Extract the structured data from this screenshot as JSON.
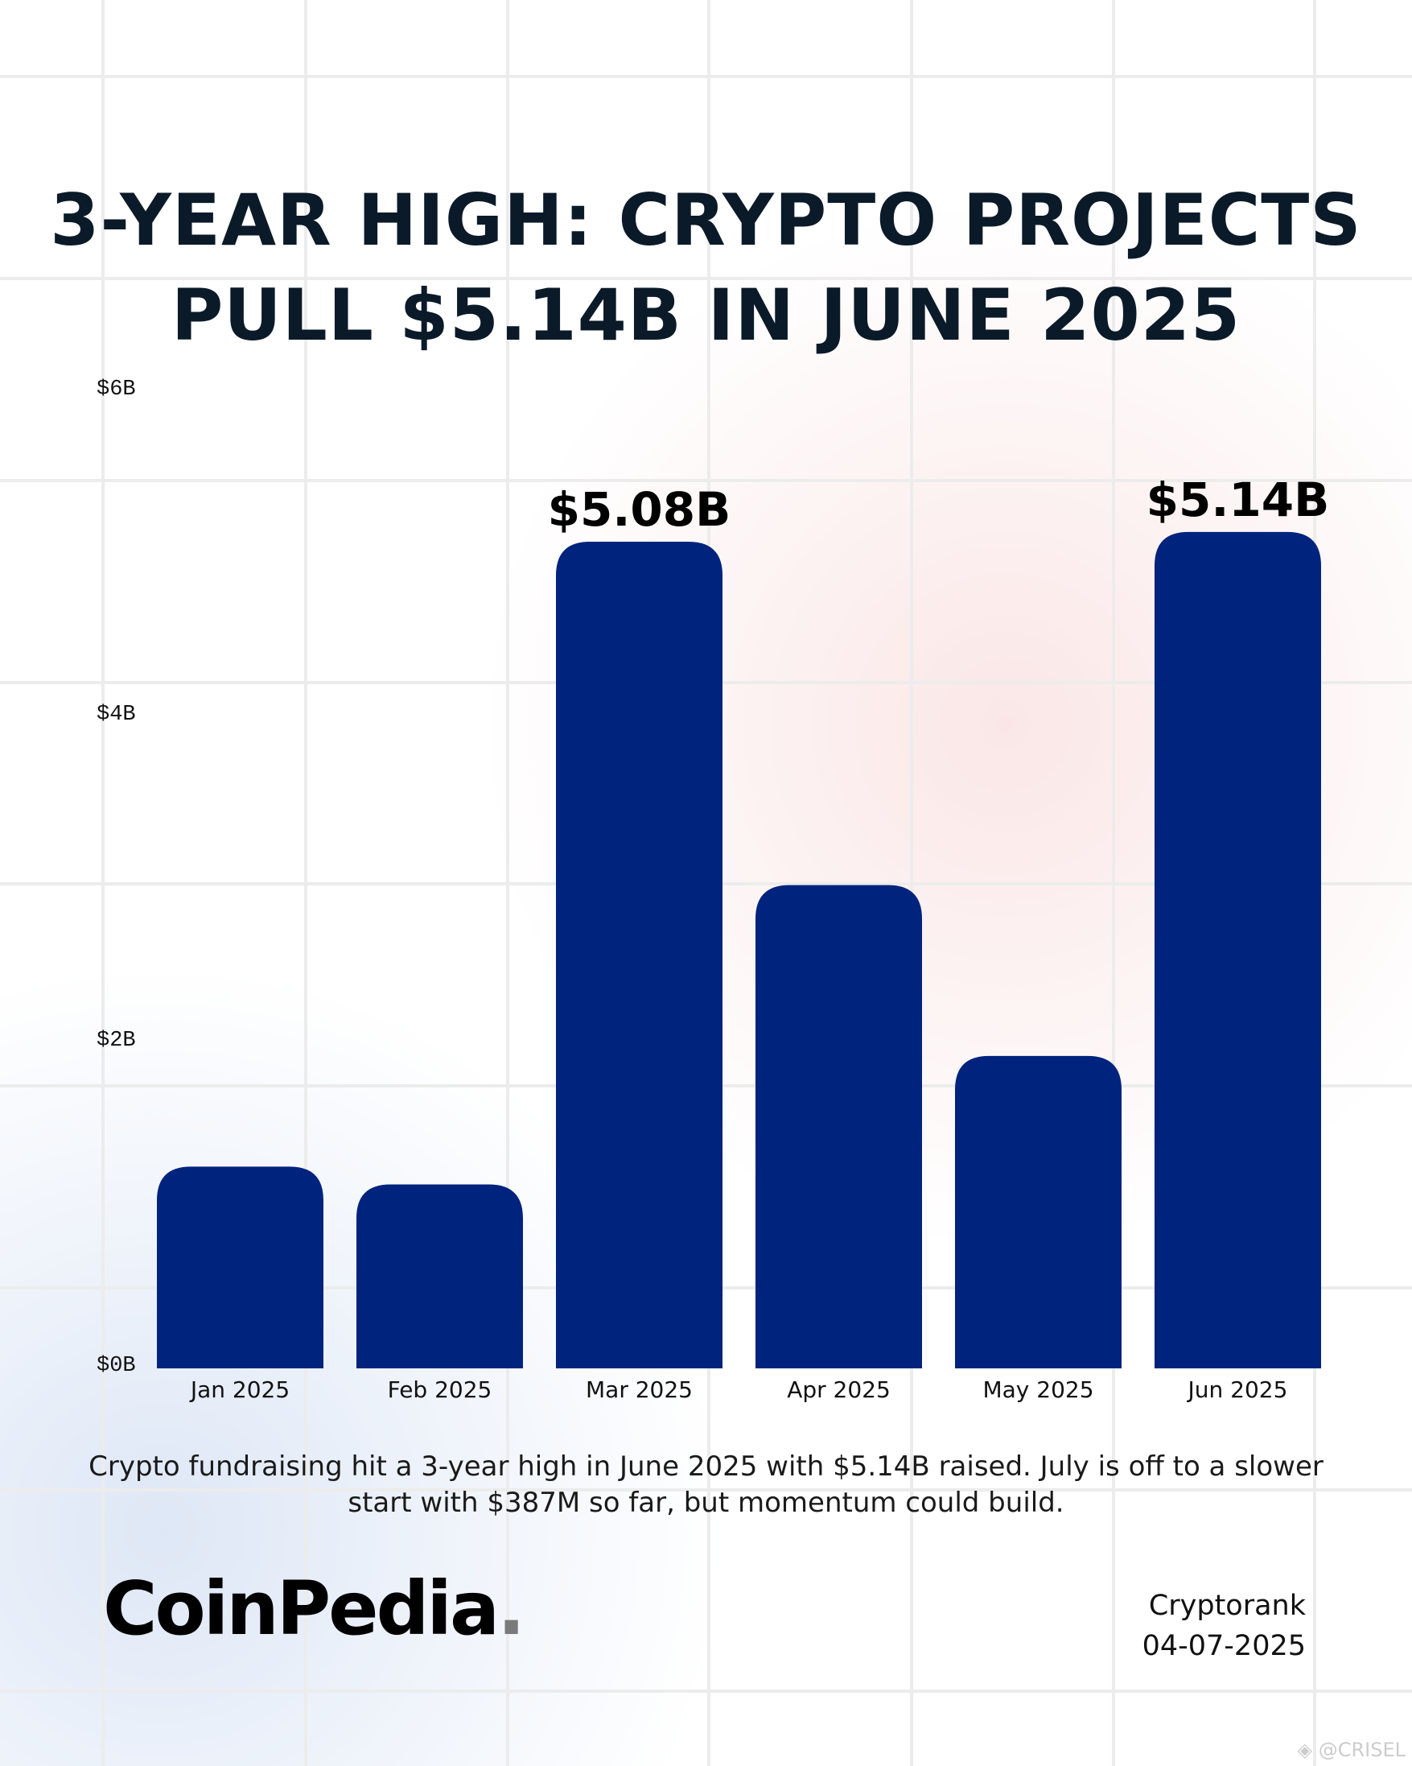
{
  "title_lines": [
    "3-YEAR HIGH: CRYPTO PROJECTS",
    "PULL $5.14B IN JUNE 2025"
  ],
  "chart_data": {
    "type": "bar",
    "title": "3-YEAR HIGH: CRYPTO PROJECTS PULL $5.14B IN JUNE 2025",
    "categories": [
      "Jan 2025",
      "Feb 2025",
      "Mar 2025",
      "Apr 2025",
      "May 2025",
      "Jun 2025"
    ],
    "values": [
      1.24,
      1.13,
      5.08,
      2.97,
      1.92,
      5.14
    ],
    "unit": "billion USD",
    "data_labels": {
      "2": "$5.08B",
      "5": "$5.14B"
    },
    "yticks": [
      "$0B",
      "$2B",
      "$4B",
      "$6B"
    ],
    "ytick_values": [
      0,
      2,
      4,
      6
    ],
    "ylim": [
      0,
      6
    ],
    "xlabel": "",
    "ylabel": "",
    "bar_color": "#00237d",
    "grid": false,
    "legend": "none"
  },
  "caption": "Crypto fundraising hit a 3-year high in June 2025 with $5.14B raised. July is off to a slower start with $387M so far, but momentum could build.",
  "logo": {
    "text": "CoinPedia",
    "dot": "."
  },
  "source": {
    "name": "Cryptorank",
    "date": "04-07-2025"
  },
  "watermark": "@CRISEL"
}
